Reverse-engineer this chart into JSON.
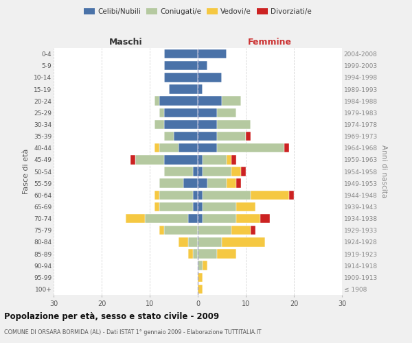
{
  "age_groups": [
    "100+",
    "95-99",
    "90-94",
    "85-89",
    "80-84",
    "75-79",
    "70-74",
    "65-69",
    "60-64",
    "55-59",
    "50-54",
    "45-49",
    "40-44",
    "35-39",
    "30-34",
    "25-29",
    "20-24",
    "15-19",
    "10-14",
    "5-9",
    "0-4"
  ],
  "birth_years": [
    "≤ 1908",
    "1909-1913",
    "1914-1918",
    "1919-1923",
    "1924-1928",
    "1929-1933",
    "1934-1938",
    "1939-1943",
    "1944-1948",
    "1949-1953",
    "1954-1958",
    "1959-1963",
    "1964-1968",
    "1969-1973",
    "1974-1978",
    "1979-1983",
    "1984-1988",
    "1989-1993",
    "1994-1998",
    "1999-2003",
    "2004-2008"
  ],
  "maschi": {
    "celibe": [
      0,
      0,
      0,
      0,
      0,
      0,
      2,
      1,
      1,
      3,
      1,
      7,
      4,
      5,
      7,
      7,
      8,
      6,
      7,
      7,
      7
    ],
    "coniugato": [
      0,
      0,
      0,
      1,
      2,
      7,
      9,
      7,
      7,
      5,
      6,
      6,
      4,
      2,
      2,
      1,
      1,
      0,
      0,
      0,
      0
    ],
    "vedovo": [
      0,
      0,
      0,
      1,
      2,
      1,
      4,
      1,
      1,
      0,
      0,
      0,
      1,
      0,
      0,
      0,
      0,
      0,
      0,
      0,
      0
    ],
    "divorziato": [
      0,
      0,
      0,
      0,
      0,
      0,
      0,
      0,
      0,
      0,
      0,
      1,
      0,
      0,
      0,
      0,
      0,
      0,
      0,
      0,
      0
    ]
  },
  "femmine": {
    "nubile": [
      0,
      0,
      0,
      0,
      0,
      0,
      1,
      1,
      1,
      2,
      1,
      1,
      4,
      4,
      4,
      4,
      5,
      1,
      5,
      2,
      6
    ],
    "coniugata": [
      0,
      0,
      1,
      4,
      5,
      7,
      7,
      7,
      10,
      4,
      6,
      5,
      14,
      6,
      7,
      4,
      4,
      0,
      0,
      0,
      0
    ],
    "vedova": [
      1,
      1,
      1,
      4,
      9,
      4,
      5,
      4,
      8,
      2,
      2,
      1,
      0,
      0,
      0,
      0,
      0,
      0,
      0,
      0,
      0
    ],
    "divorziata": [
      0,
      0,
      0,
      0,
      0,
      1,
      2,
      0,
      1,
      1,
      1,
      1,
      1,
      1,
      0,
      0,
      0,
      0,
      0,
      0,
      0
    ]
  },
  "colors": {
    "celibe": "#4a72a8",
    "coniugato": "#b5c9a0",
    "vedovo": "#f5c842",
    "divorziato": "#cc2222"
  },
  "xlim": 30,
  "title": "Popolazione per età, sesso e stato civile - 2009",
  "subtitle": "COMUNE DI ORSARA BORMIDA (AL) - Dati ISTAT 1° gennaio 2009 - Elaborazione TUTTITALIA.IT",
  "ylabel_left": "Fasce di età",
  "ylabel_right": "Anni di nascita",
  "xlabel_maschi": "Maschi",
  "xlabel_femmine": "Femmine",
  "legend_labels": [
    "Celibi/Nubili",
    "Coniugati/e",
    "Vedovi/e",
    "Divorziati/e"
  ],
  "bg_color": "#f0f0f0",
  "plot_bg_color": "#ffffff"
}
